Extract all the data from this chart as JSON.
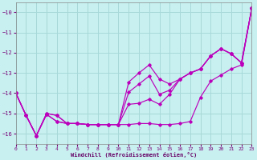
{
  "xlabel": "Windchill (Refroidissement éolien,°C)",
  "background_color": "#c8f0f0",
  "grid_color": "#a8d8d8",
  "line_color": "#bb00bb",
  "xlim": [
    0,
    23
  ],
  "ylim": [
    -16.5,
    -9.5
  ],
  "yticks": [
    -16,
    -15,
    -14,
    -13,
    -12,
    -11,
    -10
  ],
  "xticks": [
    0,
    1,
    2,
    3,
    4,
    5,
    6,
    7,
    8,
    9,
    10,
    11,
    12,
    13,
    14,
    15,
    16,
    17,
    18,
    19,
    20,
    21,
    22,
    23
  ],
  "lines": [
    {
      "x": [
        0,
        1,
        2,
        3,
        4,
        5,
        6,
        7,
        8,
        9,
        10,
        11,
        12,
        13,
        14,
        15,
        16,
        17,
        18,
        19,
        20,
        21,
        22,
        23
      ],
      "y": [
        -14.0,
        -15.1,
        -16.1,
        -15.05,
        -15.4,
        -15.5,
        -15.5,
        -15.55,
        -15.55,
        -15.55,
        -15.55,
        -15.55,
        -15.5,
        -15.5,
        -15.55,
        -15.55,
        -15.5,
        -15.4,
        -14.2,
        -13.4,
        -13.1,
        -12.8,
        -12.6,
        -9.8
      ]
    },
    {
      "x": [
        0,
        1,
        2,
        3,
        4,
        5,
        6,
        7,
        8,
        9,
        10,
        11,
        12,
        13,
        14,
        15,
        16,
        17,
        18,
        19,
        20,
        21,
        22,
        23
      ],
      "y": [
        -14.0,
        -15.1,
        -16.1,
        -15.05,
        -15.4,
        -15.5,
        -15.5,
        -15.55,
        -15.55,
        -15.55,
        -15.55,
        -14.55,
        -14.5,
        -14.3,
        -14.55,
        -14.05,
        -13.3,
        -13.0,
        -12.8,
        -12.15,
        -11.8,
        -12.05,
        -12.5,
        -9.8
      ]
    },
    {
      "x": [
        0,
        1,
        2,
        3,
        4,
        5,
        6,
        7,
        8,
        9,
        10,
        11,
        12,
        13,
        14,
        15,
        16,
        17,
        18,
        19,
        20,
        21,
        22,
        23
      ],
      "y": [
        -14.0,
        -15.1,
        -16.1,
        -15.0,
        -15.1,
        -15.5,
        -15.5,
        -15.55,
        -15.55,
        -15.55,
        -15.55,
        -13.95,
        -13.55,
        -13.15,
        -14.05,
        -13.85,
        -13.3,
        -13.0,
        -12.8,
        -12.15,
        -11.8,
        -12.05,
        -12.5,
        -9.8
      ]
    },
    {
      "x": [
        0,
        1,
        2,
        3,
        4,
        5,
        6,
        7,
        8,
        9,
        10,
        11,
        12,
        13,
        14,
        15,
        16,
        17,
        18,
        19,
        20,
        21,
        22,
        23
      ],
      "y": [
        -14.0,
        -15.1,
        -16.1,
        -15.0,
        -15.1,
        -15.5,
        -15.5,
        -15.55,
        -15.55,
        -15.55,
        -15.55,
        -13.45,
        -13.0,
        -12.6,
        -13.3,
        -13.55,
        -13.3,
        -13.0,
        -12.8,
        -12.15,
        -11.8,
        -12.05,
        -12.5,
        -9.8
      ]
    }
  ]
}
